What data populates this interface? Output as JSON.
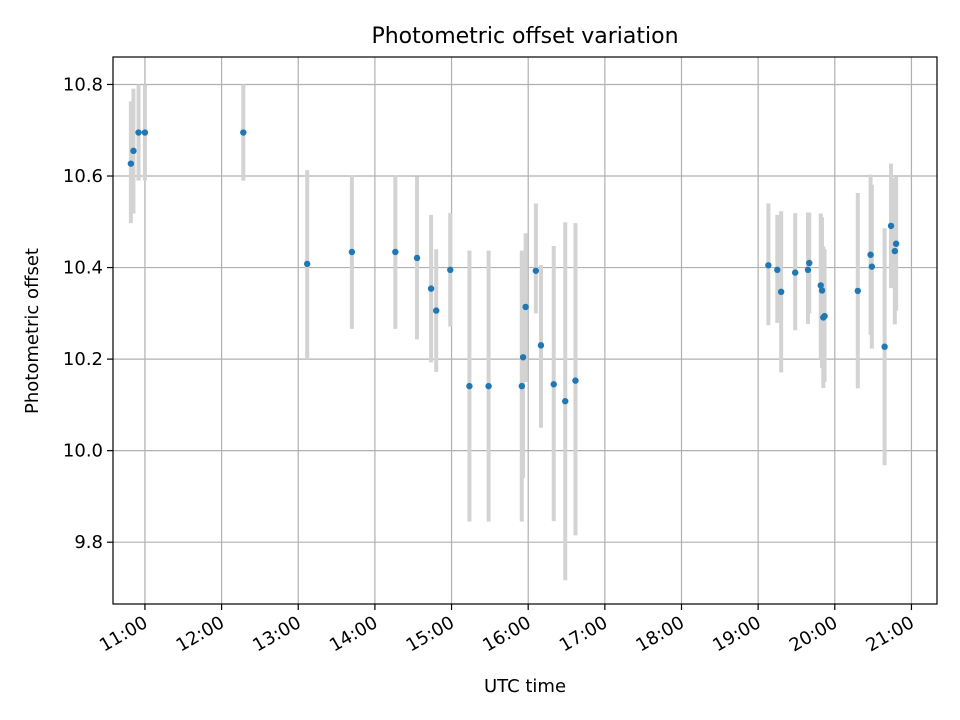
{
  "colors": {
    "point": "#1f77b4",
    "errorbar": "#d3d3d3",
    "grid": "#b0b0b0",
    "axis": "#000000"
  },
  "chart_data": {
    "type": "scatter",
    "title": "Photometric offset variation",
    "xlabel": "UTC time",
    "ylabel": "Photometric offset",
    "x_unit": "UTC hour of day",
    "xlim": [
      "10:35",
      "21:20"
    ],
    "ylim": [
      9.665,
      10.86
    ],
    "grid": true,
    "legend": "none",
    "x_ticks": [
      "11:00",
      "12:00",
      "13:00",
      "14:00",
      "15:00",
      "16:00",
      "17:00",
      "18:00",
      "19:00",
      "20:00",
      "21:00"
    ],
    "y_ticks": [
      "9.8",
      "10.0",
      "10.2",
      "10.4",
      "10.6",
      "10.8"
    ],
    "points": [
      {
        "x": "10:49",
        "y": 10.627,
        "lo": 10.497,
        "hi": 10.763
      },
      {
        "x": "10:51",
        "y": 10.655,
        "lo": 10.518,
        "hi": 10.791
      },
      {
        "x": "10:55",
        "y": 10.695,
        "lo": 10.59,
        "hi": 10.8
      },
      {
        "x": "11:00",
        "y": 10.695,
        "lo": 10.59,
        "hi": 10.8
      },
      {
        "x": "12:17",
        "y": 10.695,
        "lo": 10.59,
        "hi": 10.8
      },
      {
        "x": "13:07",
        "y": 10.408,
        "lo": 10.2,
        "hi": 10.613
      },
      {
        "x": "13:42",
        "y": 10.434,
        "lo": 10.266,
        "hi": 10.602
      },
      {
        "x": "14:16",
        "y": 10.434,
        "lo": 10.266,
        "hi": 10.602
      },
      {
        "x": "14:33",
        "y": 10.421,
        "lo": 10.243,
        "hi": 10.599
      },
      {
        "x": "14:44",
        "y": 10.354,
        "lo": 10.193,
        "hi": 10.515
      },
      {
        "x": "14:48",
        "y": 10.306,
        "lo": 10.172,
        "hi": 10.44
      },
      {
        "x": "14:59",
        "y": 10.395,
        "lo": 10.271,
        "hi": 10.519
      },
      {
        "x": "15:14",
        "y": 10.141,
        "lo": 9.845,
        "hi": 10.437
      },
      {
        "x": "15:29",
        "y": 10.141,
        "lo": 9.845,
        "hi": 10.437
      },
      {
        "x": "15:55",
        "y": 10.141,
        "lo": 9.845,
        "hi": 10.437
      },
      {
        "x": "15:56",
        "y": 10.204,
        "lo": 9.94,
        "hi": 10.42
      },
      {
        "x": "15:58",
        "y": 10.314,
        "lo": 10.15,
        "hi": 10.475
      },
      {
        "x": "16:06",
        "y": 10.393,
        "lo": 10.3,
        "hi": 10.54
      },
      {
        "x": "16:10",
        "y": 10.23,
        "lo": 10.05,
        "hi": 10.405
      },
      {
        "x": "16:20",
        "y": 10.145,
        "lo": 9.846,
        "hi": 10.447
      },
      {
        "x": "16:29",
        "y": 10.108,
        "lo": 9.717,
        "hi": 10.499
      },
      {
        "x": "16:37",
        "y": 10.153,
        "lo": 9.815,
        "hi": 10.497
      },
      {
        "x": "19:08",
        "y": 10.405,
        "lo": 10.274,
        "hi": 10.54
      },
      {
        "x": "19:15",
        "y": 10.395,
        "lo": 10.279,
        "hi": 10.515
      },
      {
        "x": "19:18",
        "y": 10.347,
        "lo": 10.171,
        "hi": 10.523
      },
      {
        "x": "19:29",
        "y": 10.389,
        "lo": 10.263,
        "hi": 10.519
      },
      {
        "x": "19:39",
        "y": 10.395,
        "lo": 10.277,
        "hi": 10.52
      },
      {
        "x": "19:40",
        "y": 10.41,
        "lo": 10.3,
        "hi": 10.52
      },
      {
        "x": "19:49",
        "y": 10.361,
        "lo": 10.2,
        "hi": 10.518
      },
      {
        "x": "19:50",
        "y": 10.35,
        "lo": 10.18,
        "hi": 10.51
      },
      {
        "x": "19:51",
        "y": 10.291,
        "lo": 10.137,
        "hi": 10.446
      },
      {
        "x": "19:52",
        "y": 10.294,
        "lo": 10.15,
        "hi": 10.44
      },
      {
        "x": "20:18",
        "y": 10.349,
        "lo": 10.136,
        "hi": 10.563
      },
      {
        "x": "20:28",
        "y": 10.428,
        "lo": 10.253,
        "hi": 10.603
      },
      {
        "x": "20:29",
        "y": 10.402,
        "lo": 10.223,
        "hi": 10.581
      },
      {
        "x": "20:39",
        "y": 10.227,
        "lo": 9.968,
        "hi": 10.486
      },
      {
        "x": "20:44",
        "y": 10.491,
        "lo": 10.355,
        "hi": 10.627
      },
      {
        "x": "20:47",
        "y": 10.436,
        "lo": 10.276,
        "hi": 10.596
      },
      {
        "x": "20:48",
        "y": 10.452,
        "lo": 10.306,
        "hi": 10.598
      }
    ]
  }
}
